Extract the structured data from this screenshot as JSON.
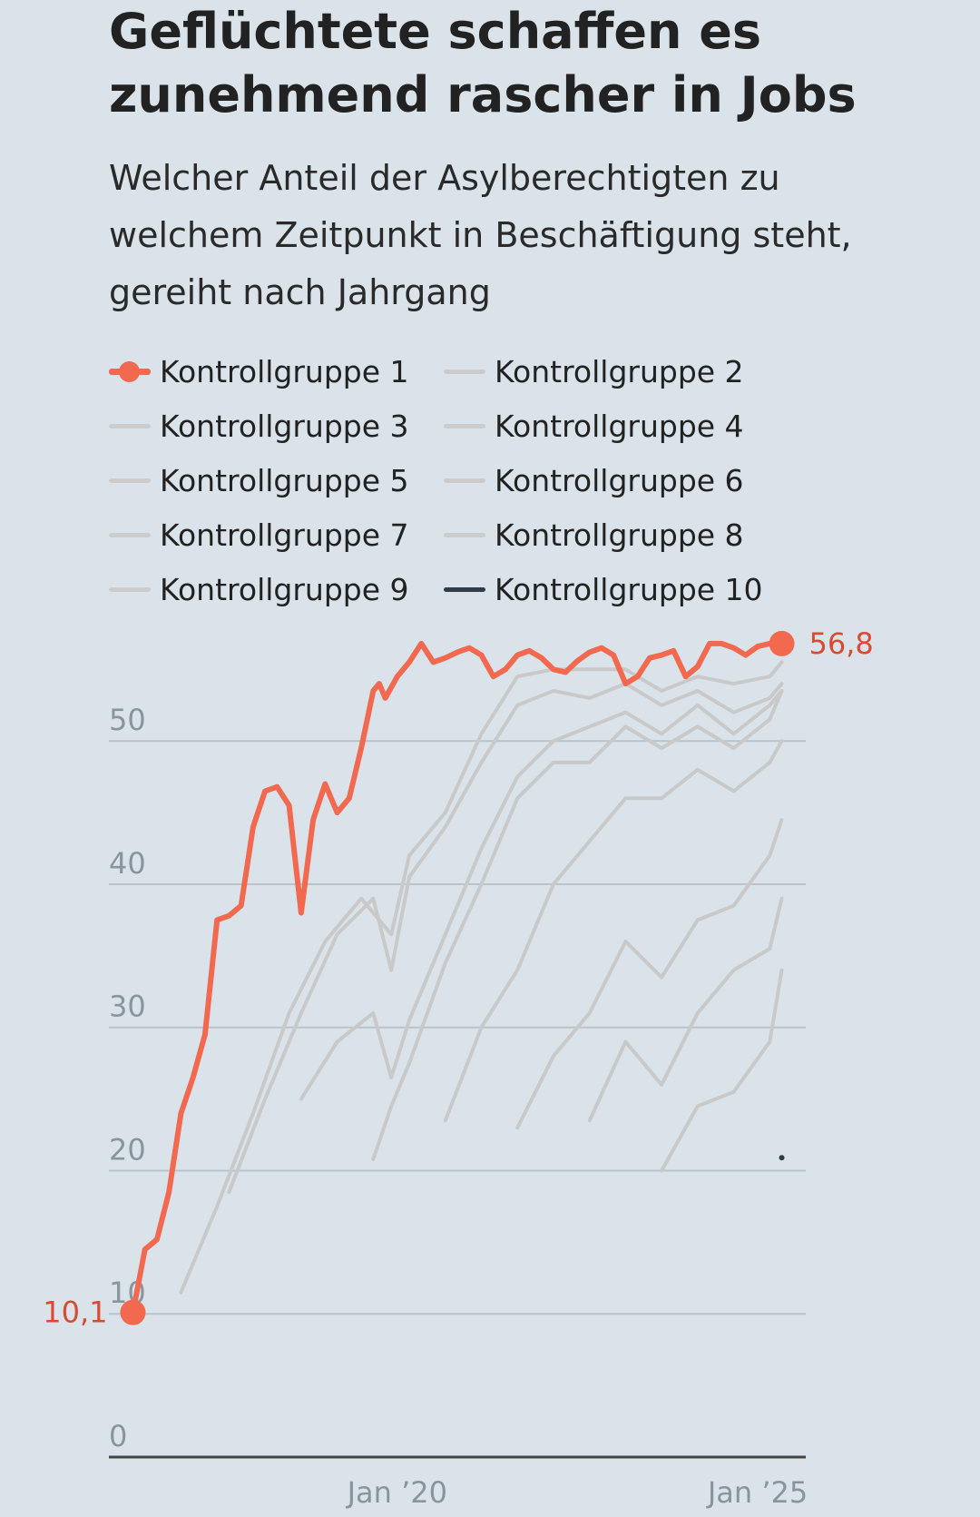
{
  "title": "Geflüchtete schaffen es zunehmend rascher in Jobs",
  "subtitle": "Welcher Anteil der Asylberechtigten zu welchem Zeitpunkt in Beschäftigung steht, gereiht nach Jahrgang",
  "colors": {
    "highlight": "#f2694f",
    "highlight_text": "#d94a32",
    "other": "#c9c9c9",
    "dark": "#2f3b47",
    "grid": "#b8c3cc",
    "axis": "#444444",
    "tick": "#8a949c"
  },
  "chart_data": {
    "type": "line",
    "title": "Geflüchtete schaffen es zunehmend rascher in Jobs",
    "subtitle": "Welcher Anteil der Asylberechtigten zu welchem Zeitpunkt in Beschäftigung steht, gereiht nach Jahrgang",
    "xlabel": "",
    "ylabel": "",
    "x_ticks": [
      "Jan ’20",
      "Jan ’25"
    ],
    "y_ticks": [
      0,
      10,
      20,
      30,
      40,
      50
    ],
    "ylim": [
      0,
      58
    ],
    "xlim": [
      "2016-01",
      "2025-09"
    ],
    "grid": true,
    "legend_position": "top",
    "start_label": "10,1",
    "end_label": "56,8",
    "series": [
      {
        "name": "Kontrollgruppe 1",
        "highlight": true,
        "x": [
          "2016-05",
          "2016-07",
          "2016-09",
          "2016-11",
          "2017-01",
          "2017-03",
          "2017-05",
          "2017-07",
          "2017-09",
          "2017-11",
          "2018-01",
          "2018-03",
          "2018-05",
          "2018-07",
          "2018-09",
          "2018-11",
          "2019-01",
          "2019-03",
          "2019-05",
          "2019-07",
          "2019-09",
          "2019-10",
          "2019-11",
          "2020-01",
          "2020-03",
          "2020-05",
          "2020-07",
          "2020-09",
          "2020-11",
          "2021-01",
          "2021-03",
          "2021-05",
          "2021-07",
          "2021-09",
          "2021-11",
          "2022-01",
          "2022-03",
          "2022-05",
          "2022-07",
          "2022-09",
          "2022-11",
          "2023-01",
          "2023-03",
          "2023-05",
          "2023-07",
          "2023-09",
          "2023-11",
          "2024-01",
          "2024-03",
          "2024-05",
          "2024-07",
          "2024-09",
          "2024-11",
          "2025-01",
          "2025-03",
          "2025-05"
        ],
        "y": [
          10.1,
          14.5,
          15.2,
          18.5,
          24.0,
          26.5,
          29.5,
          37.5,
          37.8,
          38.5,
          44.0,
          46.5,
          46.8,
          45.5,
          38.0,
          44.5,
          47.0,
          45.0,
          46.0,
          49.5,
          53.5,
          54.0,
          53.0,
          54.5,
          55.5,
          56.8,
          55.5,
          55.8,
          56.2,
          56.5,
          56.0,
          54.5,
          55.0,
          56.0,
          56.3,
          55.8,
          55.0,
          54.8,
          55.6,
          56.2,
          56.5,
          56.0,
          54.0,
          54.5,
          55.8,
          56.0,
          56.3,
          54.5,
          55.2,
          56.8,
          56.8,
          56.5,
          56.0,
          56.6,
          56.8,
          56.8
        ]
      },
      {
        "name": "Kontrollgruppe 2",
        "x": [
          "2017-01",
          "2017-07",
          "2018-01",
          "2018-07",
          "2019-01",
          "2019-07",
          "2019-12",
          "2020-03",
          "2020-09",
          "2021-03",
          "2021-09",
          "2022-03",
          "2022-09",
          "2023-03",
          "2023-09",
          "2024-03",
          "2024-09",
          "2025-03",
          "2025-05"
        ],
        "y": [
          11.5,
          17.5,
          24.0,
          31.0,
          36.0,
          39.0,
          36.5,
          42.0,
          45.0,
          50.5,
          54.5,
          55.0,
          55.0,
          55.0,
          53.5,
          54.5,
          54.0,
          54.5,
          55.5
        ]
      },
      {
        "name": "Kontrollgruppe 3",
        "x": [
          "2017-09",
          "2018-03",
          "2018-09",
          "2019-03",
          "2019-09",
          "2019-12",
          "2020-03",
          "2020-09",
          "2021-03",
          "2021-09",
          "2022-03",
          "2022-09",
          "2023-03",
          "2023-09",
          "2024-03",
          "2024-09",
          "2025-03",
          "2025-05"
        ],
        "y": [
          18.5,
          25.0,
          31.0,
          36.5,
          39.0,
          34.0,
          40.5,
          44.0,
          48.5,
          52.5,
          53.5,
          53.0,
          54.0,
          52.5,
          53.5,
          52.0,
          53.0,
          54.0
        ]
      },
      {
        "name": "Kontrollgruppe 4",
        "x": [
          "2018-09",
          "2019-03",
          "2019-09",
          "2019-12",
          "2020-03",
          "2020-09",
          "2021-03",
          "2021-09",
          "2022-03",
          "2022-09",
          "2023-03",
          "2023-09",
          "2024-03",
          "2024-09",
          "2025-03",
          "2025-05"
        ],
        "y": [
          25.0,
          29.0,
          31.0,
          26.5,
          30.5,
          36.5,
          42.5,
          47.5,
          50.0,
          51.0,
          52.0,
          50.5,
          52.5,
          50.5,
          52.5,
          53.5
        ]
      },
      {
        "name": "Kontrollgruppe 5",
        "x": [
          "2019-09",
          "2019-12",
          "2020-03",
          "2020-09",
          "2021-03",
          "2021-09",
          "2022-03",
          "2022-09",
          "2023-03",
          "2023-09",
          "2024-03",
          "2024-09",
          "2025-03",
          "2025-05"
        ],
        "y": [
          20.8,
          24.5,
          27.5,
          34.5,
          40.0,
          46.0,
          48.5,
          48.5,
          51.0,
          49.5,
          51.0,
          49.5,
          51.5,
          53.5
        ]
      },
      {
        "name": "Kontrollgruppe 6",
        "x": [
          "2020-09",
          "2021-03",
          "2021-09",
          "2022-03",
          "2022-09",
          "2023-03",
          "2023-09",
          "2024-03",
          "2024-09",
          "2025-03",
          "2025-05"
        ],
        "y": [
          23.5,
          30.0,
          34.0,
          40.0,
          43.0,
          46.0,
          46.0,
          48.0,
          46.5,
          48.5,
          50.0
        ]
      },
      {
        "name": "Kontrollgruppe 7",
        "x": [
          "2021-09",
          "2022-03",
          "2022-09",
          "2023-03",
          "2023-09",
          "2024-03",
          "2024-09",
          "2025-03",
          "2025-05"
        ],
        "y": [
          23.0,
          28.0,
          31.0,
          36.0,
          33.5,
          37.5,
          38.5,
          42.0,
          44.5
        ]
      },
      {
        "name": "Kontrollgruppe 8",
        "x": [
          "2022-09",
          "2023-03",
          "2023-09",
          "2024-03",
          "2024-09",
          "2025-03",
          "2025-05"
        ],
        "y": [
          23.5,
          29.0,
          26.0,
          31.0,
          34.0,
          35.5,
          39.0
        ]
      },
      {
        "name": "Kontrollgruppe 9",
        "x": [
          "2023-09",
          "2024-03",
          "2024-09",
          "2025-03",
          "2025-05"
        ],
        "y": [
          20.0,
          24.5,
          25.5,
          29.0,
          34.0
        ]
      },
      {
        "name": "Kontrollgruppe 10",
        "x": [
          "2025-05"
        ],
        "y": [
          20.9
        ]
      }
    ]
  }
}
